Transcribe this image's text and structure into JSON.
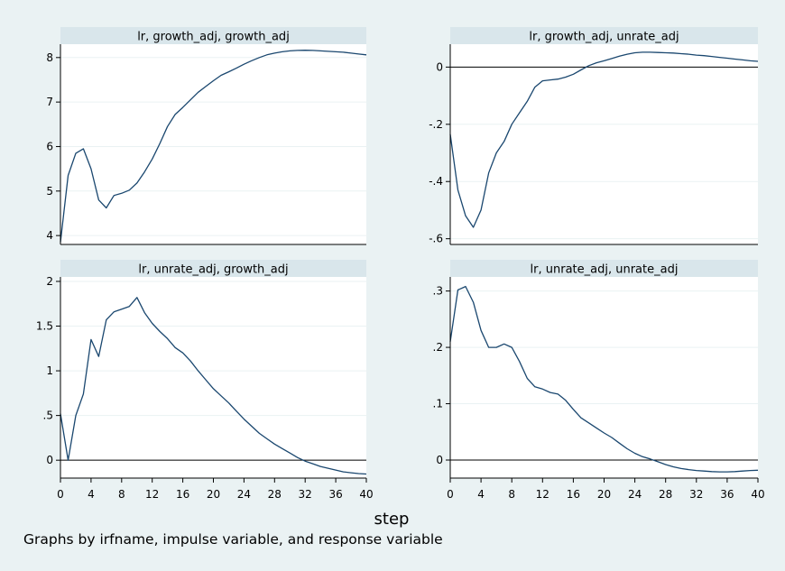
{
  "figure": {
    "xlabel": "step",
    "note": "Graphs by irfname, impulse variable, and response variable",
    "colors": {
      "background": "#eaf2f3",
      "plot_area": "#ffffff",
      "strip": "#d9e6eb",
      "line": "#1a476f",
      "gridline": "#eaf2f3"
    }
  },
  "chart_data": [
    {
      "type": "line",
      "title": "lr, growth_adj, growth_adj",
      "xlim": [
        0,
        40
      ],
      "ylim": [
        3.8,
        8.3
      ],
      "xticks": [
        0,
        4,
        8,
        12,
        16,
        20,
        24,
        28,
        32,
        36,
        40
      ],
      "xtick_labels": [
        "0",
        "4",
        "8",
        "12",
        "16",
        "20",
        "24",
        "28",
        "32",
        "36",
        "40"
      ],
      "yticks": [
        4,
        5,
        6,
        7,
        8
      ],
      "ytick_labels": [
        "4",
        "5",
        "6",
        "7",
        "8"
      ],
      "zero_line": false,
      "series": [
        {
          "x": [
            0,
            1,
            2,
            3,
            4,
            5,
            6,
            7,
            8,
            9,
            10,
            11,
            12,
            13,
            14,
            15,
            16,
            17,
            18,
            19,
            20,
            21,
            22,
            23,
            24,
            25,
            26,
            27,
            28,
            29,
            30,
            31,
            32,
            33,
            34,
            35,
            36,
            37,
            38,
            39,
            40
          ],
          "y": [
            3.85,
            5.35,
            5.85,
            5.95,
            5.5,
            4.8,
            4.62,
            4.9,
            4.95,
            5.02,
            5.18,
            5.43,
            5.72,
            6.07,
            6.45,
            6.72,
            6.88,
            7.05,
            7.22,
            7.35,
            7.48,
            7.6,
            7.68,
            7.76,
            7.85,
            7.93,
            8.0,
            8.06,
            8.1,
            8.13,
            8.15,
            8.16,
            8.165,
            8.16,
            8.15,
            8.14,
            8.13,
            8.12,
            8.1,
            8.08,
            8.06
          ]
        }
      ]
    },
    {
      "type": "line",
      "title": "lr, growth_adj, unrate_adj",
      "xlim": [
        0,
        40
      ],
      "ylim": [
        -0.62,
        0.08
      ],
      "xticks": [
        0,
        4,
        8,
        12,
        16,
        20,
        24,
        28,
        32,
        36,
        40
      ],
      "xtick_labels": [
        "0",
        "4",
        "8",
        "12",
        "16",
        "20",
        "24",
        "28",
        "32",
        "36",
        "40"
      ],
      "yticks": [
        0,
        -0.2,
        -0.4,
        -0.6
      ],
      "ytick_labels": [
        "0",
        "-.2",
        "-.4",
        "-.6"
      ],
      "zero_line": true,
      "series": [
        {
          "x": [
            0,
            1,
            2,
            3,
            4,
            5,
            6,
            7,
            8,
            9,
            10,
            11,
            12,
            13,
            14,
            15,
            16,
            17,
            18,
            19,
            20,
            21,
            22,
            23,
            24,
            25,
            26,
            27,
            28,
            29,
            30,
            31,
            32,
            33,
            34,
            35,
            36,
            37,
            38,
            39,
            40
          ],
          "y": [
            -0.235,
            -0.43,
            -0.52,
            -0.56,
            -0.5,
            -0.37,
            -0.3,
            -0.26,
            -0.2,
            -0.16,
            -0.12,
            -0.07,
            -0.048,
            -0.045,
            -0.042,
            -0.035,
            -0.025,
            -0.01,
            0.005,
            0.015,
            0.022,
            0.03,
            0.038,
            0.045,
            0.05,
            0.052,
            0.052,
            0.051,
            0.05,
            0.049,
            0.047,
            0.045,
            0.042,
            0.04,
            0.037,
            0.034,
            0.031,
            0.028,
            0.025,
            0.022,
            0.02
          ]
        }
      ]
    },
    {
      "type": "line",
      "title": "lr, unrate_adj, growth_adj",
      "xlim": [
        0,
        40
      ],
      "ylim": [
        -0.2,
        2.05
      ],
      "xticks": [
        0,
        4,
        8,
        12,
        16,
        20,
        24,
        28,
        32,
        36,
        40
      ],
      "xtick_labels": [
        "0",
        "4",
        "8",
        "12",
        "16",
        "20",
        "24",
        "28",
        "32",
        "36",
        "40"
      ],
      "yticks": [
        0,
        0.5,
        1,
        1.5,
        2
      ],
      "ytick_labels": [
        "0",
        ".5",
        "1",
        "1.5",
        "2"
      ],
      "zero_line": true,
      "series": [
        {
          "x": [
            0,
            1,
            2,
            3,
            4,
            5,
            6,
            7,
            8,
            9,
            10,
            11,
            12,
            13,
            14,
            15,
            16,
            17,
            18,
            19,
            20,
            21,
            22,
            23,
            24,
            25,
            26,
            27,
            28,
            29,
            30,
            31,
            32,
            33,
            34,
            35,
            36,
            37,
            38,
            39,
            40
          ],
          "y": [
            0.52,
            0.0,
            0.5,
            0.74,
            1.35,
            1.16,
            1.57,
            1.66,
            1.69,
            1.72,
            1.82,
            1.65,
            1.53,
            1.44,
            1.36,
            1.26,
            1.2,
            1.11,
            1.0,
            0.9,
            0.8,
            0.72,
            0.64,
            0.55,
            0.46,
            0.38,
            0.3,
            0.24,
            0.18,
            0.13,
            0.08,
            0.03,
            -0.01,
            -0.04,
            -0.07,
            -0.09,
            -0.11,
            -0.13,
            -0.14,
            -0.15,
            -0.155
          ]
        }
      ]
    },
    {
      "type": "line",
      "title": "lr, unrate_adj, unrate_adj",
      "xlim": [
        0,
        40
      ],
      "ylim": [
        -0.032,
        0.325
      ],
      "xticks": [
        0,
        4,
        8,
        12,
        16,
        20,
        24,
        28,
        32,
        36,
        40
      ],
      "xtick_labels": [
        "0",
        "4",
        "8",
        "12",
        "16",
        "20",
        "24",
        "28",
        "32",
        "36",
        "40"
      ],
      "yticks": [
        0,
        0.1,
        0.2,
        0.3
      ],
      "ytick_labels": [
        "0",
        ".1",
        ".2",
        ".3"
      ],
      "zero_line": true,
      "series": [
        {
          "x": [
            0,
            1,
            2,
            3,
            4,
            5,
            6,
            7,
            8,
            9,
            10,
            11,
            12,
            13,
            14,
            15,
            16,
            17,
            18,
            19,
            20,
            21,
            22,
            23,
            24,
            25,
            26,
            27,
            28,
            29,
            30,
            31,
            32,
            33,
            34,
            35,
            36,
            37,
            38,
            39,
            40
          ],
          "y": [
            0.21,
            0.302,
            0.308,
            0.28,
            0.23,
            0.2,
            0.2,
            0.206,
            0.2,
            0.175,
            0.145,
            0.13,
            0.126,
            0.12,
            0.117,
            0.106,
            0.09,
            0.075,
            0.066,
            0.057,
            0.048,
            0.04,
            0.03,
            0.02,
            0.012,
            0.006,
            0.002,
            -0.003,
            -0.008,
            -0.012,
            -0.015,
            -0.017,
            -0.0185,
            -0.0195,
            -0.0205,
            -0.021,
            -0.021,
            -0.0205,
            -0.0195,
            -0.0185,
            -0.018
          ]
        }
      ]
    }
  ]
}
